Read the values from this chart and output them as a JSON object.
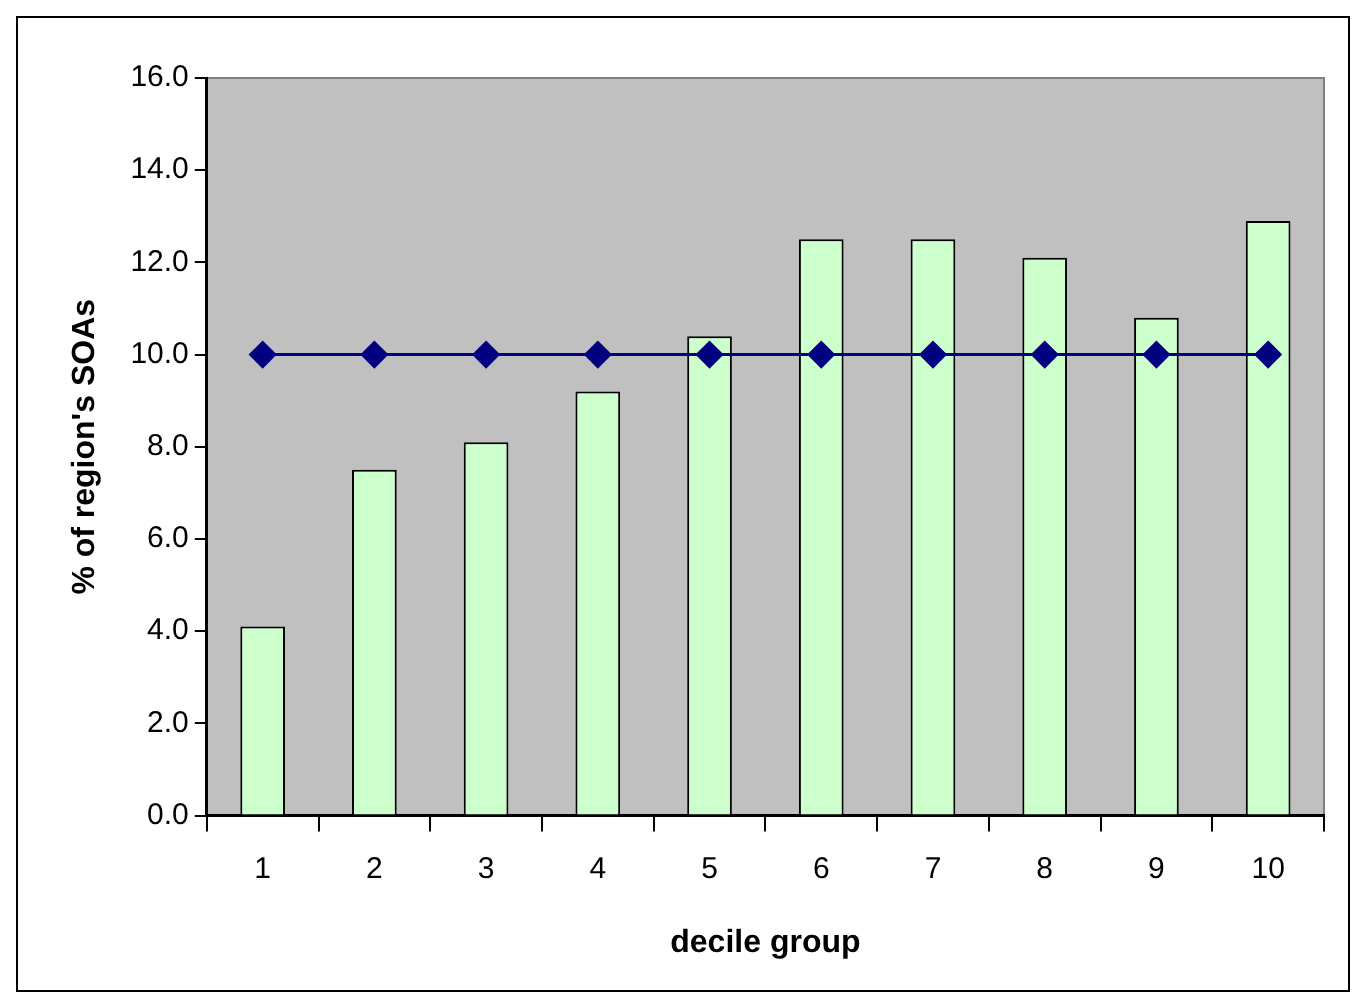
{
  "chart_data": {
    "type": "bar",
    "xlabel": "decile group",
    "ylabel": "% of region's SOAs",
    "categories": [
      "1",
      "2",
      "3",
      "4",
      "5",
      "6",
      "7",
      "8",
      "9",
      "10"
    ],
    "series": [
      {
        "color": "#ccffcc",
        "values": [
          4.1,
          7.5,
          8.1,
          9.2,
          10.4,
          12.5,
          12.5,
          12.1,
          10.8,
          12.9
        ]
      },
      {
        "type": "line",
        "color": "#000080",
        "marker": "diamond",
        "line_style": "solid",
        "values": [
          10,
          10,
          10,
          10,
          10,
          10,
          10,
          10,
          10,
          10
        ]
      }
    ],
    "ylim": [
      0,
      16
    ],
    "yticks": [
      {
        "value": 0,
        "label": "0.0"
      },
      {
        "value": 2,
        "label": "2.0"
      },
      {
        "value": 4,
        "label": "4.0"
      },
      {
        "value": 6,
        "label": "6.0"
      },
      {
        "value": 8,
        "label": "8.0"
      },
      {
        "value": 10,
        "label": "10.0"
      },
      {
        "value": 12,
        "label": "12.0"
      },
      {
        "value": 14,
        "label": "14.0"
      },
      {
        "value": 16,
        "label": "16.0"
      }
    ],
    "grid": false,
    "legend": false
  }
}
